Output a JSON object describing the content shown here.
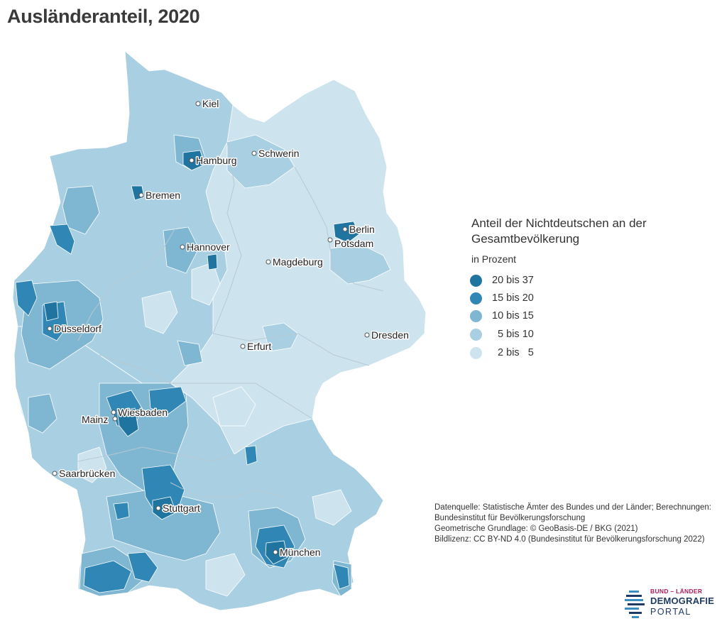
{
  "title": "Ausländeranteil, 2020",
  "legend": {
    "title_line1": "Anteil der Nichtdeutschen an der",
    "title_line2": "Gesamtbevölkerung",
    "unit": "in Prozent",
    "classes": [
      {
        "label": "20 bis 37",
        "color": "#1f74a0"
      },
      {
        "label": "15 bis 20",
        "color": "#3087b5"
      },
      {
        "label": "10 bis 15",
        "color": "#7fb6d2"
      },
      {
        "label": "  5 bis 10",
        "color": "#a8cfe2"
      },
      {
        "label": "  2 bis   5",
        "color": "#cde4ef"
      }
    ]
  },
  "cities": [
    {
      "name": "Kiel"
    },
    {
      "name": "Hamburg"
    },
    {
      "name": "Schwerin"
    },
    {
      "name": "Bremen"
    },
    {
      "name": "Berlin"
    },
    {
      "name": "Potsdam"
    },
    {
      "name": "Hannover"
    },
    {
      "name": "Magdeburg"
    },
    {
      "name": "Düsseldorf"
    },
    {
      "name": "Dresden"
    },
    {
      "name": "Erfurt"
    },
    {
      "name": "Wiesbaden"
    },
    {
      "name": "Mainz"
    },
    {
      "name": "Saarbrücken"
    },
    {
      "name": "Stuttgart"
    },
    {
      "name": "München"
    }
  ],
  "source": {
    "line1": "Datenquelle: Statistische Ämter des Bundes und der Länder; Berechnungen:",
    "line2": "Bundesinstitut für Bevölkerungsforschung",
    "line3": "Geometrische Grundlage: © GeoBasis-DE / BKG (2021)",
    "line4": "Bildlizenz: CC BY-ND 4.0 (Bundesinstitut für Bevölkerungsforschung 2022)"
  },
  "logo": {
    "top": "BUND – LÄNDER",
    "mid": "DEMOGRAFIE",
    "bot": "PORTAL"
  }
}
